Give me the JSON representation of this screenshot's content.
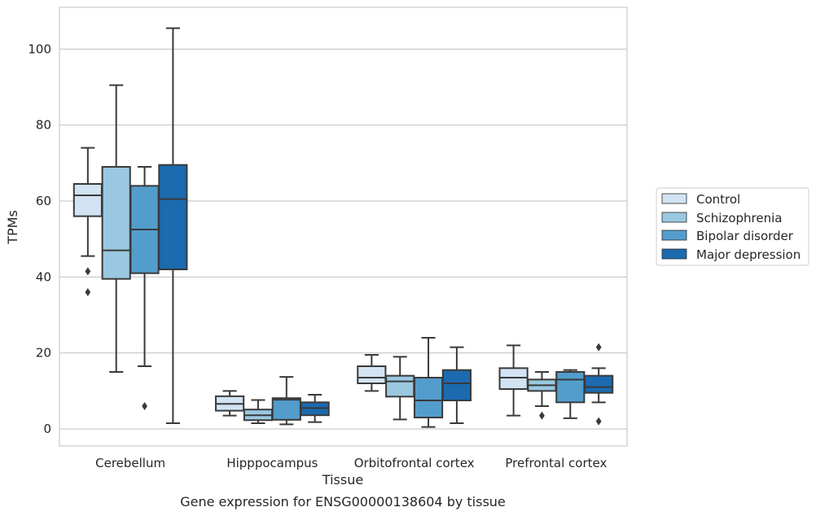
{
  "caption": "Gene expression for ENSG00000138604 by tissue",
  "chart_data": {
    "type": "box",
    "xlabel": "Tissue",
    "ylabel": "TPMs",
    "ylim": [
      -4.5,
      111
    ],
    "yticks": [
      0,
      20,
      40,
      60,
      80,
      100
    ],
    "grid": "horizontal",
    "legend_position": "right",
    "categories": [
      "Cerebellum",
      "Hipppocampus",
      "Orbitofrontal cortex",
      "Prefrontal cortex"
    ],
    "series": [
      {
        "name": "Control",
        "color": "#d2e3f3",
        "boxes": [
          {
            "whisker_low": 45.5,
            "q1": 56,
            "median": 61.5,
            "q3": 64.5,
            "whisker_high": 74,
            "outliers": [
              41.5,
              36
            ]
          },
          {
            "whisker_low": 3.5,
            "q1": 4.8,
            "median": 6.6,
            "q3": 8.6,
            "whisker_high": 10,
            "outliers": []
          },
          {
            "whisker_low": 10,
            "q1": 12,
            "median": 13.5,
            "q3": 16.5,
            "whisker_high": 19.5,
            "outliers": []
          },
          {
            "whisker_low": 3.5,
            "q1": 10.5,
            "median": 13.5,
            "q3": 16,
            "whisker_high": 22,
            "outliers": []
          }
        ]
      },
      {
        "name": "Schizophrenia",
        "color": "#9ac8e0",
        "boxes": [
          {
            "whisker_low": 15,
            "q1": 39.5,
            "median": 47,
            "q3": 69,
            "whisker_high": 90.5,
            "outliers": []
          },
          {
            "whisker_low": 1.5,
            "q1": 2.3,
            "median": 3.6,
            "q3": 5.1,
            "whisker_high": 7.6,
            "outliers": []
          },
          {
            "whisker_low": 2.5,
            "q1": 8.5,
            "median": 12.5,
            "q3": 14,
            "whisker_high": 19,
            "outliers": []
          },
          {
            "whisker_low": 6,
            "q1": 10,
            "median": 11.5,
            "q3": 13,
            "whisker_high": 15,
            "outliers": [
              3.5
            ]
          }
        ]
      },
      {
        "name": "Bipolar disorder",
        "color": "#529dcc",
        "boxes": [
          {
            "whisker_low": 16.5,
            "q1": 41,
            "median": 52.5,
            "q3": 64,
            "whisker_high": 69,
            "outliers": [
              6
            ]
          },
          {
            "whisker_low": 1.2,
            "q1": 2.4,
            "median": 7.7,
            "q3": 8.1,
            "whisker_high": 13.7,
            "outliers": []
          },
          {
            "whisker_low": 0.5,
            "q1": 3,
            "median": 7.5,
            "q3": 13.5,
            "whisker_high": 24,
            "outliers": []
          },
          {
            "whisker_low": 2.8,
            "q1": 7,
            "median": 13,
            "q3": 15,
            "whisker_high": 15.5,
            "outliers": []
          }
        ]
      },
      {
        "name": "Major depression",
        "color": "#1c6aaf",
        "boxes": [
          {
            "whisker_low": 1.5,
            "q1": 42,
            "median": 60.5,
            "q3": 69.5,
            "whisker_high": 105.5,
            "outliers": []
          },
          {
            "whisker_low": 1.8,
            "q1": 3.6,
            "median": 5.5,
            "q3": 7,
            "whisker_high": 9,
            "outliers": []
          },
          {
            "whisker_low": 1.5,
            "q1": 7.5,
            "median": 12,
            "q3": 15.5,
            "whisker_high": 21.5,
            "outliers": []
          },
          {
            "whisker_low": 7,
            "q1": 9.5,
            "median": 11,
            "q3": 14,
            "whisker_high": 16,
            "outliers": [
              21.5,
              2
            ]
          }
        ]
      }
    ]
  }
}
